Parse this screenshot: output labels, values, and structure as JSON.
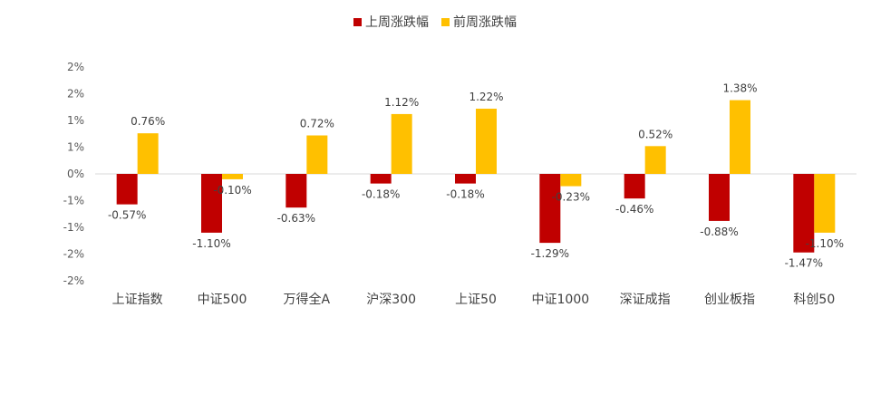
{
  "chart_data": {
    "type": "bar",
    "title": "",
    "xlabel": "",
    "ylabel": "",
    "categories": [
      "上证指数",
      "中证500",
      "万得全A",
      "沪深300",
      "上证50",
      "中证1000",
      "深证成指",
      "创业板指",
      "科创50"
    ],
    "series": [
      {
        "name": "上周涨跌幅",
        "color": "#C00000",
        "values": [
          -0.57,
          -1.1,
          -0.63,
          -0.18,
          -0.18,
          -1.29,
          -0.46,
          -0.88,
          -1.47
        ],
        "labels": [
          "-0.57%",
          "-1.10%",
          "-0.63%",
          "-0.18%",
          "-0.18%",
          "-1.29%",
          "-0.46%",
          "-0.88%",
          "-1.47%"
        ]
      },
      {
        "name": "前周涨跌幅",
        "color": "#FFC000",
        "values": [
          0.76,
          -0.1,
          0.72,
          1.12,
          1.22,
          -0.23,
          0.52,
          1.38,
          -1.1
        ],
        "labels": [
          "0.76%",
          "-0.10%",
          "0.72%",
          "1.12%",
          "1.22%",
          "-0.23%",
          "0.52%",
          "1.38%",
          "-1.10%"
        ]
      }
    ],
    "ylim": [
      -2.0,
      2.0
    ],
    "y_ticks": [
      2.0,
      1.5,
      1.0,
      0.5,
      0.0,
      -0.5,
      -1.0,
      -1.5,
      -2.0
    ],
    "y_tick_labels": [
      "2%",
      "2%",
      "1%",
      "1%",
      "0%",
      "-1%",
      "-1%",
      "-2%",
      "-2%"
    ],
    "grid": false,
    "legend_position": "top-center"
  }
}
